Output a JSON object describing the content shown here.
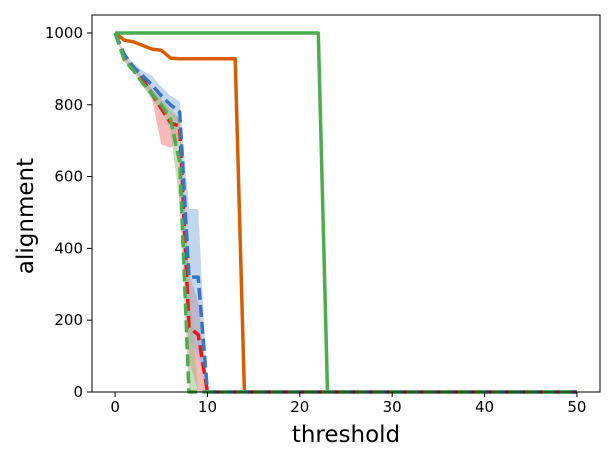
{
  "chart_data": {
    "type": "line",
    "title": "",
    "xlabel": "threshold",
    "ylabel": "alignment",
    "xlim": [
      -2.5,
      52.5
    ],
    "ylim": [
      0,
      1050
    ],
    "xticks": [
      0,
      10,
      20,
      30,
      40,
      50
    ],
    "yticks": [
      0,
      200,
      400,
      600,
      800,
      1000
    ],
    "grid": false,
    "legend": "none",
    "series": [
      {
        "color": "#d45e00",
        "dash": "solid",
        "points": [
          [
            0,
            1000
          ],
          [
            1,
            980
          ],
          [
            2,
            975
          ],
          [
            3,
            965
          ],
          [
            4,
            955
          ],
          [
            5,
            952
          ],
          [
            6,
            930
          ],
          [
            7,
            928
          ],
          [
            8,
            928
          ],
          [
            9,
            928
          ],
          [
            10,
            928
          ],
          [
            11,
            928
          ],
          [
            12,
            928
          ],
          [
            13,
            928
          ],
          [
            14,
            0
          ],
          [
            20,
            0
          ],
          [
            30,
            0
          ],
          [
            40,
            0
          ],
          [
            50,
            0
          ]
        ]
      },
      {
        "color": "#4dac4d",
        "dash": "solid",
        "points": [
          [
            0,
            1000
          ],
          [
            5,
            1000
          ],
          [
            10,
            1000
          ],
          [
            15,
            1000
          ],
          [
            20,
            1000
          ],
          [
            22,
            1000
          ],
          [
            23,
            0
          ],
          [
            30,
            0
          ],
          [
            40,
            0
          ],
          [
            50,
            0
          ]
        ]
      },
      {
        "color": "#e41a1c",
        "dash": "dashed",
        "band_color": "#f08080",
        "points": [
          [
            0,
            1000
          ],
          [
            1,
            930
          ],
          [
            2,
            900
          ],
          [
            3,
            870
          ],
          [
            4,
            830
          ],
          [
            5,
            790
          ],
          [
            6,
            750
          ],
          [
            7,
            740
          ],
          [
            8,
            180
          ],
          [
            9,
            160
          ],
          [
            10,
            0
          ],
          [
            20,
            0
          ],
          [
            30,
            0
          ],
          [
            40,
            0
          ],
          [
            50,
            0
          ]
        ],
        "band": [
          [
            0,
            1000,
            1000
          ],
          [
            1,
            935,
            925
          ],
          [
            2,
            905,
            895
          ],
          [
            3,
            878,
            862
          ],
          [
            4,
            845,
            815
          ],
          [
            5,
            815,
            690
          ],
          [
            6,
            780,
            680
          ],
          [
            7,
            760,
            700
          ],
          [
            8,
            330,
            90
          ],
          [
            9,
            250,
            0
          ],
          [
            10,
            0,
            0
          ]
        ]
      },
      {
        "color": "#3a75c4",
        "dash": "dashed",
        "band_color": "#8fb4dc",
        "points": [
          [
            0,
            1000
          ],
          [
            1,
            940
          ],
          [
            2,
            905
          ],
          [
            3,
            880
          ],
          [
            4,
            855
          ],
          [
            5,
            825
          ],
          [
            6,
            800
          ],
          [
            7,
            780
          ],
          [
            8,
            320
          ],
          [
            9,
            320
          ],
          [
            10,
            0
          ],
          [
            20,
            0
          ],
          [
            30,
            0
          ],
          [
            40,
            0
          ],
          [
            50,
            0
          ]
        ],
        "band": [
          [
            0,
            1000,
            1000
          ],
          [
            1,
            945,
            935
          ],
          [
            2,
            915,
            895
          ],
          [
            3,
            895,
            865
          ],
          [
            4,
            880,
            830
          ],
          [
            5,
            850,
            800
          ],
          [
            6,
            825,
            775
          ],
          [
            7,
            810,
            740
          ],
          [
            8,
            510,
            150
          ],
          [
            9,
            510,
            100
          ],
          [
            10,
            0,
            0
          ]
        ]
      },
      {
        "color": "#4dac4d",
        "dash": "dashed",
        "band_color": "#9cbf8a",
        "points": [
          [
            0,
            1000
          ],
          [
            1,
            925
          ],
          [
            2,
            895
          ],
          [
            3,
            860
          ],
          [
            4,
            830
          ],
          [
            5,
            800
          ],
          [
            6,
            760
          ],
          [
            7,
            640
          ],
          [
            8,
            0
          ],
          [
            20,
            0
          ],
          [
            30,
            0
          ],
          [
            40,
            0
          ],
          [
            50,
            0
          ]
        ],
        "band": [
          [
            0,
            1000,
            1000
          ],
          [
            1,
            930,
            920
          ],
          [
            2,
            900,
            890
          ],
          [
            3,
            870,
            850
          ],
          [
            4,
            845,
            815
          ],
          [
            5,
            815,
            785
          ],
          [
            6,
            790,
            730
          ],
          [
            7,
            760,
            520
          ],
          [
            8,
            320,
            0
          ],
          [
            9,
            0,
            0
          ]
        ]
      }
    ]
  }
}
